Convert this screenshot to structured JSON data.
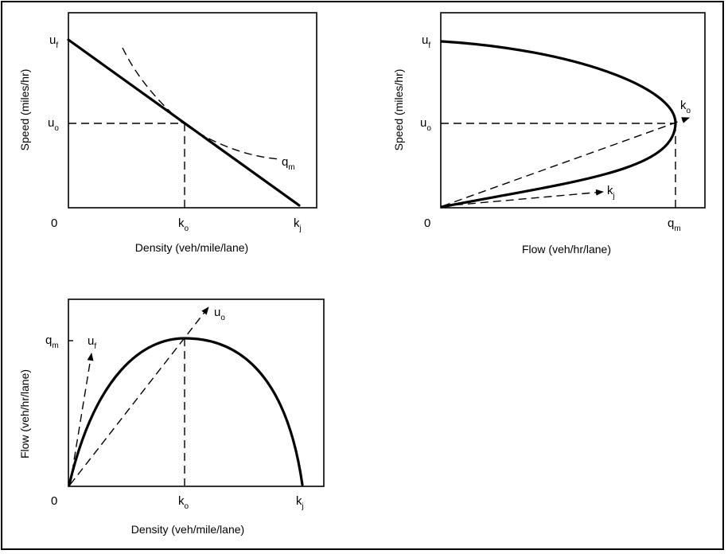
{
  "panel_speed_density": {
    "y_axis_title": "Speed (miles/hr)",
    "x_axis_title": "Density (veh/mile/lane)",
    "origin_label": "0",
    "uf_label": {
      "main": "u",
      "sub": "f"
    },
    "uo_label": {
      "main": "u",
      "sub": "o"
    },
    "ko_label": {
      "main": "k",
      "sub": "o"
    },
    "kj_label": {
      "main": "k",
      "sub": "j"
    },
    "qm_label": {
      "main": "q",
      "sub": "m"
    }
  },
  "panel_speed_flow": {
    "y_axis_title": "Speed (miles/hr)",
    "x_axis_title": "Flow (veh/hr/lane)",
    "origin_label": "0",
    "uf_label": {
      "main": "u",
      "sub": "f"
    },
    "uo_label": {
      "main": "u",
      "sub": "o"
    },
    "qm_label": {
      "main": "q",
      "sub": "m"
    },
    "ko_label": {
      "main": "k",
      "sub": "o"
    },
    "kj_label": {
      "main": "k",
      "sub": "j"
    }
  },
  "panel_flow_density": {
    "y_axis_title": "Flow (veh/hr/lane)",
    "x_axis_title": "Density (veh/mile/lane)",
    "origin_label": "0",
    "qm_label": {
      "main": "q",
      "sub": "m"
    },
    "uf_label": {
      "main": "u",
      "sub": "f"
    },
    "uo_label": {
      "main": "u",
      "sub": "o"
    },
    "ko_label": {
      "main": "k",
      "sub": "o"
    },
    "kj_label": {
      "main": "k",
      "sub": "j"
    }
  }
}
